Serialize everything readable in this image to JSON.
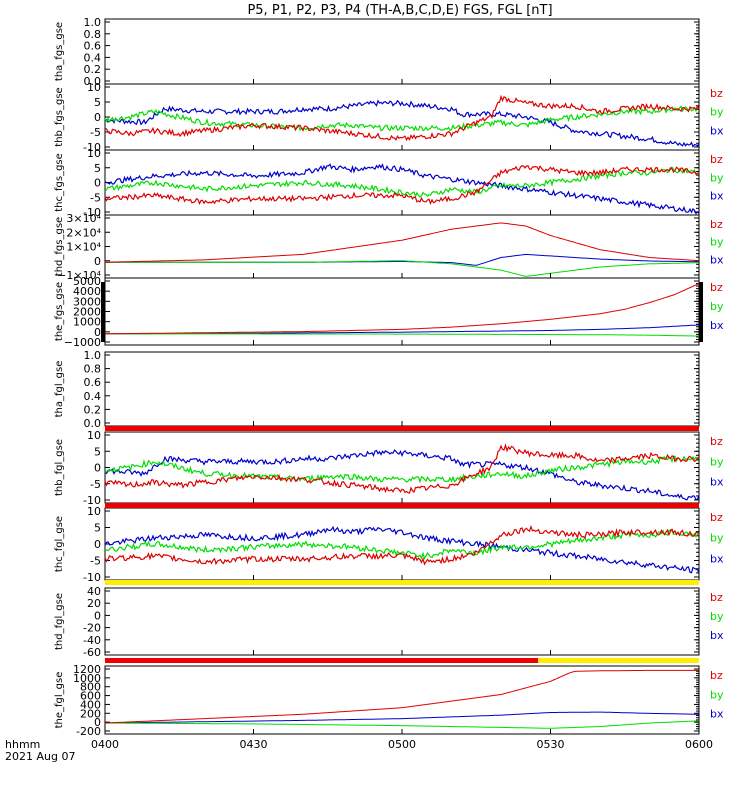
{
  "title": "P5, P1, P2, P3, P4 (TH-A,B,C,D,E) FGS, FGL [nT]",
  "colors": {
    "bx": "#0000cc",
    "by": "#00dd00",
    "bz": "#dd0000",
    "flag_red": "#ee0000",
    "flag_yellow": "#ffee00",
    "frame": "#000000"
  },
  "footer": {
    "line1": "hhmm",
    "line2": "2021 Aug 07"
  },
  "x_axis": {
    "ticks": [
      "0400",
      "0430",
      "0500",
      "0530",
      "0600"
    ]
  },
  "chart_data": [
    {
      "type": "line",
      "id": "tha_fgs_gse",
      "ylabel": "tha_fgs_gse",
      "ylim": [
        0,
        1
      ],
      "yticks": [
        "1.0",
        "0.8",
        "0.6",
        "0.4",
        "0.2",
        "0.0"
      ],
      "legend": [],
      "series": []
    },
    {
      "type": "line",
      "id": "thb_fgs_gse",
      "ylabel": "thb_fgs_gse",
      "ylim": [
        -12,
        12
      ],
      "yticks": [
        "10",
        "5",
        "0",
        "-5",
        "-10"
      ],
      "legend": [
        "bz",
        "by",
        "bx"
      ],
      "series": [
        {
          "name": "bx",
          "x": [
            0,
            8,
            12,
            20,
            35,
            40,
            45,
            50,
            55,
            60,
            65,
            70,
            72,
            80,
            85,
            90,
            95,
            100,
            105,
            110,
            113,
            116,
            120
          ],
          "y": [
            -1,
            -2,
            3,
            2,
            2,
            3,
            3,
            4,
            5,
            5,
            4,
            3,
            1,
            1,
            0,
            -2,
            -5,
            -6,
            -7,
            -8,
            -9,
            -10,
            -10
          ]
        },
        {
          "name": "by",
          "x": [
            0,
            5,
            10,
            20,
            30,
            40,
            45,
            50,
            55,
            60,
            65,
            70,
            75,
            80,
            85,
            90,
            95,
            100,
            105,
            110,
            115,
            120
          ],
          "y": [
            -1,
            0,
            2,
            -2,
            -3,
            -4,
            -3,
            -3,
            -4,
            -4,
            -4,
            -4,
            -3,
            -2,
            -3,
            -1,
            0,
            1,
            2,
            2,
            3,
            3
          ]
        },
        {
          "name": "bz",
          "x": [
            0,
            5,
            10,
            15,
            20,
            30,
            40,
            45,
            50,
            55,
            60,
            65,
            70,
            75,
            78,
            80,
            85,
            90,
            95,
            100,
            105,
            110,
            115,
            120
          ],
          "y": [
            -5,
            -6,
            -5,
            -6,
            -5,
            -3,
            -4,
            -5,
            -6,
            -7,
            -8,
            -7,
            -6,
            -2,
            0,
            7,
            5,
            4,
            4,
            2,
            3,
            4,
            3,
            3
          ]
        }
      ]
    },
    {
      "type": "line",
      "id": "thd_fgs_gse_1",
      "ylabel": "thc_fgs_gse",
      "ylim": [
        -10,
        10
      ],
      "yticks": [
        "10",
        "5",
        "0",
        "-5",
        "-10"
      ],
      "legend": [
        "bz",
        "by",
        "bx"
      ],
      "series": [
        {
          "name": "bx",
          "x": [
            0,
            10,
            20,
            30,
            40,
            45,
            50,
            55,
            60,
            65,
            70,
            75,
            80,
            85,
            90,
            95,
            100,
            105,
            110,
            115,
            120
          ],
          "y": [
            0,
            2,
            3,
            2,
            3,
            5,
            4,
            5,
            4,
            2,
            1,
            0,
            -1,
            -2,
            -3,
            -4,
            -5,
            -6,
            -7,
            -8,
            -9
          ]
        },
        {
          "name": "by",
          "x": [
            0,
            5,
            10,
            20,
            30,
            40,
            50,
            55,
            60,
            65,
            70,
            75,
            80,
            85,
            90,
            95,
            100,
            105,
            110,
            115,
            120
          ],
          "y": [
            -2,
            -1,
            0,
            -2,
            -1,
            0,
            -1,
            -2,
            -3,
            -4,
            -2,
            -3,
            -1,
            -1,
            0,
            1,
            2,
            3,
            3,
            4,
            3
          ]
        },
        {
          "name": "bz",
          "x": [
            0,
            10,
            20,
            30,
            40,
            50,
            60,
            65,
            70,
            75,
            80,
            85,
            90,
            95,
            100,
            105,
            110,
            115,
            120
          ],
          "y": [
            -5,
            -4,
            -6,
            -5,
            -5,
            -4,
            -4,
            -6,
            -5,
            -3,
            3,
            5,
            4,
            3,
            3,
            4,
            4,
            4,
            3
          ]
        }
      ]
    },
    {
      "type": "line",
      "id": "thd_fgs_gse",
      "ylabel": "thd_fgs_gse",
      "ylim": [
        -10000,
        30000
      ],
      "yticks": [
        "3×10⁴",
        "2×10⁴",
        "1×10⁴",
        "0",
        "−1×10⁴"
      ],
      "legend": [
        "bz",
        "by",
        "bx"
      ],
      "series": [
        {
          "name": "bx",
          "x": [
            0,
            40,
            60,
            70,
            75,
            80,
            85,
            90,
            100,
            110,
            120
          ],
          "y": [
            0,
            0,
            500,
            -200,
            -2000,
            3000,
            5000,
            4000,
            2000,
            800,
            300
          ]
        },
        {
          "name": "by",
          "x": [
            0,
            40,
            60,
            70,
            80,
            85,
            90,
            100,
            110,
            120
          ],
          "y": [
            0,
            0,
            1000,
            -1000,
            -5000,
            -9000,
            -7000,
            -3000,
            -1000,
            -300
          ]
        },
        {
          "name": "bz",
          "x": [
            0,
            20,
            40,
            60,
            70,
            80,
            85,
            90,
            100,
            110,
            120
          ],
          "y": [
            0,
            1500,
            5000,
            14000,
            21000,
            25000,
            23000,
            17000,
            8000,
            3000,
            1000
          ]
        }
      ]
    },
    {
      "type": "line",
      "id": "the_fgs_gse",
      "ylabel": "the_fgs_gse",
      "ylim": [
        -1000,
        5000
      ],
      "yticks": [
        "5000",
        "4000",
        "3000",
        "2000",
        "1000",
        "0",
        "−1000"
      ],
      "legend": [
        "bz",
        "by",
        "bx"
      ],
      "series": [
        {
          "name": "bx",
          "x": [
            0,
            30,
            60,
            90,
            100,
            110,
            120
          ],
          "y": [
            0,
            50,
            150,
            300,
            400,
            550,
            800
          ]
        },
        {
          "name": "by",
          "x": [
            0,
            60,
            100,
            110,
            120
          ],
          "y": [
            0,
            -20,
            -80,
            -120,
            -200
          ]
        },
        {
          "name": "bz",
          "x": [
            0,
            20,
            40,
            60,
            70,
            80,
            90,
            100,
            105,
            110,
            115,
            120
          ],
          "y": [
            0,
            100,
            200,
            400,
            600,
            900,
            1300,
            1800,
            2200,
            2800,
            3500,
            4500
          ]
        }
      ]
    },
    {
      "type": "line",
      "id": "tha_fgl_gse",
      "ylabel": "tha_fgl_gse",
      "ylim": [
        0,
        1
      ],
      "yticks": [
        "1.0",
        "0.8",
        "0.6",
        "0.4",
        "0.2",
        "0.0"
      ],
      "legend": [],
      "series": []
    },
    {
      "type": "line",
      "id": "thb_fgl_gse",
      "ylabel": "thb_fgl_gse",
      "ylim": [
        -12,
        12
      ],
      "yticks": [
        "10",
        "5",
        "0",
        "-5",
        "-10"
      ],
      "legend": [
        "bz",
        "by",
        "bx"
      ],
      "series": [
        {
          "name": "bx",
          "x": [
            0,
            8,
            12,
            20,
            35,
            40,
            45,
            50,
            55,
            60,
            65,
            70,
            72,
            80,
            85,
            90,
            95,
            100,
            105,
            110,
            113,
            116,
            120
          ],
          "y": [
            -1,
            -2,
            3,
            2,
            2,
            3,
            3,
            4,
            5,
            5,
            4,
            3,
            1,
            1,
            0,
            -2,
            -5,
            -6,
            -7,
            -8,
            -9,
            -10,
            -10
          ]
        },
        {
          "name": "by",
          "x": [
            0,
            5,
            10,
            20,
            30,
            40,
            45,
            50,
            55,
            60,
            65,
            70,
            75,
            80,
            85,
            90,
            95,
            100,
            105,
            110,
            115,
            120
          ],
          "y": [
            -1,
            0,
            2,
            -2,
            -3,
            -4,
            -3,
            -3,
            -4,
            -4,
            -4,
            -4,
            -3,
            -2,
            -3,
            -1,
            0,
            1,
            2,
            2,
            3,
            3
          ]
        },
        {
          "name": "bz",
          "x": [
            0,
            5,
            10,
            15,
            20,
            30,
            40,
            45,
            50,
            55,
            60,
            65,
            70,
            75,
            78,
            80,
            85,
            90,
            95,
            100,
            105,
            110,
            115,
            120
          ],
          "y": [
            -5,
            -6,
            -5,
            -6,
            -5,
            -3,
            -4,
            -5,
            -6,
            -7,
            -8,
            -7,
            -6,
            -2,
            0,
            7,
            5,
            4,
            4,
            2,
            3,
            4,
            3,
            3
          ]
        }
      ]
    },
    {
      "type": "line",
      "id": "thc_fgl_gse",
      "ylabel": "thc_fgl_gse",
      "ylim": [
        -12,
        12
      ],
      "yticks": [
        "10",
        "5",
        "0",
        "-5",
        "-10"
      ],
      "legend": [
        "bz",
        "by",
        "bx"
      ],
      "series": [
        {
          "name": "bx",
          "x": [
            0,
            10,
            20,
            30,
            40,
            45,
            50,
            55,
            60,
            65,
            70,
            75,
            80,
            85,
            90,
            95,
            100,
            105,
            110,
            115,
            120
          ],
          "y": [
            0,
            2,
            3,
            2,
            3,
            5,
            4,
            5,
            4,
            2,
            1,
            0,
            -1,
            -2,
            -3,
            -4,
            -5,
            -6,
            -7,
            -8,
            -9
          ]
        },
        {
          "name": "by",
          "x": [
            0,
            5,
            10,
            20,
            30,
            40,
            50,
            55,
            60,
            65,
            70,
            75,
            80,
            85,
            90,
            95,
            100,
            105,
            110,
            115,
            120
          ],
          "y": [
            -2,
            -1,
            0,
            -2,
            -1,
            0,
            -1,
            -2,
            -3,
            -4,
            -2,
            -3,
            -1,
            -1,
            0,
            1,
            2,
            3,
            3,
            4,
            3
          ]
        },
        {
          "name": "bz",
          "x": [
            0,
            10,
            20,
            30,
            40,
            50,
            60,
            65,
            70,
            75,
            80,
            85,
            90,
            95,
            100,
            105,
            110,
            115,
            120
          ],
          "y": [
            -5,
            -4,
            -6,
            -5,
            -5,
            -4,
            -4,
            -6,
            -5,
            -3,
            3,
            5,
            4,
            3,
            3,
            4,
            4,
            4,
            3
          ]
        }
      ]
    },
    {
      "type": "line",
      "id": "thd_fgl_gse",
      "ylabel": "thd_fgl_gse",
      "ylim": [
        -70,
        50
      ],
      "yticks": [
        "40",
        "20",
        "0",
        "-20",
        "-40",
        "-60"
      ],
      "legend": [
        "bz",
        "by",
        "bx"
      ],
      "series": []
    },
    {
      "type": "line",
      "id": "the_fgl_gse",
      "ylabel": "the_fgl_gse",
      "ylim": [
        -250,
        1300
      ],
      "yticks": [
        "1200",
        "1000",
        "800",
        "600",
        "400",
        "200",
        "0",
        "-200"
      ],
      "legend": [
        "bz",
        "by",
        "bx"
      ],
      "series": [
        {
          "name": "bx",
          "x": [
            0,
            20,
            40,
            60,
            80,
            90,
            100,
            110,
            120
          ],
          "y": [
            0,
            30,
            60,
            100,
            180,
            240,
            250,
            220,
            200
          ]
        },
        {
          "name": "by",
          "x": [
            0,
            30,
            60,
            80,
            90,
            100,
            110,
            120
          ],
          "y": [
            0,
            -20,
            -60,
            -100,
            -120,
            -80,
            0,
            50
          ]
        },
        {
          "name": "bz",
          "x": [
            0,
            20,
            40,
            60,
            80,
            90,
            94,
            95,
            100,
            110,
            120
          ],
          "y": [
            0,
            100,
            200,
            350,
            650,
            950,
            1150,
            1180,
            1190,
            1200,
            1200
          ]
        }
      ]
    }
  ]
}
